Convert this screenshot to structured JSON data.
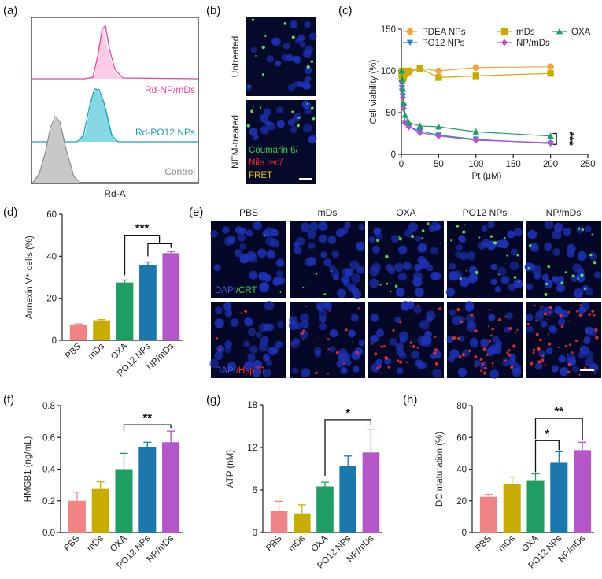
{
  "panels": {
    "a": "(a)",
    "b": "(b)",
    "c": "(c)",
    "d": "(d)",
    "e": "(e)",
    "f": "(f)",
    "g": "(g)",
    "h": "(h)"
  },
  "colors": {
    "pink": "#f08484",
    "olive": "#c8ad00",
    "green": "#1e9e63",
    "blue": "#1a78ae",
    "purple": "#b256c9",
    "pdea": "#f2a33a",
    "mds_line": "#c8ad00",
    "po12": "#2e84c6",
    "np": "#b256c9",
    "oxa_line": "#1e9e63",
    "flow_pink": "#e8409a",
    "flow_teal": "#1da3b8",
    "flow_gray": "#8c8c8c"
  },
  "flow": {
    "xlabel": "Rd-A",
    "labels": [
      "Rd-NP/mDs",
      "Rd-PO12 NPs",
      "Control"
    ]
  },
  "micro_b": {
    "rows": [
      "Untreated",
      "NEM-treated"
    ],
    "legend": [
      "Coumarin 6/",
      "Nile red/",
      "FRET"
    ]
  },
  "micro_e": {
    "columns": [
      "PBS",
      "mDs",
      "OXA",
      "PO12 NPs",
      "NP/mDs"
    ],
    "stain1_a": "DAPI",
    "stain1_b": "/CRT",
    "stain2_a": "DAPI",
    "stain2_b": "/Hsp70"
  },
  "chart_data": [
    {
      "panel": "c",
      "type": "line",
      "ylabel": "Cell viability (%)",
      "xlabel": "Pt (μM)",
      "xlim": [
        0,
        250
      ],
      "ylim": [
        0,
        150
      ],
      "xticks": [
        "0",
        "50",
        "100",
        "150",
        "200",
        "250"
      ],
      "yticks": [
        "0",
        "50",
        "100",
        "150"
      ],
      "significance": "***",
      "series": [
        {
          "name": "PDEA NPs",
          "marker": "circle",
          "x": [
            0.5,
            1,
            2,
            3,
            5,
            10,
            25,
            50,
            100,
            200
          ],
          "y": [
            92,
            96,
            88,
            100,
            95,
            98,
            103,
            100,
            104,
            105
          ]
        },
        {
          "name": "PO12 NPs",
          "marker": "tri-down",
          "x": [
            0.5,
            1,
            2,
            3,
            5,
            10,
            25,
            50,
            100,
            200
          ],
          "y": [
            85,
            80,
            70,
            57,
            38,
            33,
            28,
            23,
            18,
            13
          ]
        },
        {
          "name": "mDs",
          "marker": "square",
          "x": [
            0.5,
            1,
            2,
            3,
            5,
            10,
            25,
            50,
            100,
            200
          ],
          "y": [
            95,
            100,
            96,
            92,
            96,
            100,
            103,
            92,
            94,
            97
          ]
        },
        {
          "name": "NP/mDs",
          "marker": "diamond",
          "x": [
            0.5,
            1,
            2,
            3,
            5,
            10,
            25,
            50,
            100,
            200
          ],
          "y": [
            88,
            78,
            68,
            55,
            38,
            33,
            26,
            22,
            17,
            14
          ]
        },
        {
          "name": "OXA",
          "marker": "tri-up",
          "x": [
            0.5,
            1,
            2,
            3,
            5,
            10,
            25,
            50,
            100,
            200
          ],
          "y": [
            100,
            90,
            78,
            62,
            47,
            38,
            34,
            33,
            27,
            22
          ]
        }
      ]
    },
    {
      "panel": "d",
      "type": "bar",
      "ylabel": "Annexin V⁺ cells (%)",
      "categories": [
        "PBS",
        "mDs",
        "OXA",
        "PO12 NPs",
        "NP/mDs"
      ],
      "values": [
        7.5,
        9.5,
        27.5,
        36,
        41.5
      ],
      "errors": [
        0.3,
        0.4,
        1.2,
        1.3,
        0.8
      ],
      "ylim": [
        0,
        60
      ],
      "yticks": [
        "0",
        "20",
        "40",
        "60"
      ],
      "significance": "***"
    },
    {
      "panel": "f",
      "type": "bar",
      "ylabel": "HMGB1 (ng/mL)",
      "categories": [
        "PBS",
        "mDs",
        "OXA",
        "PO12 NPs",
        "NP/mDs"
      ],
      "values": [
        0.2,
        0.275,
        0.4,
        0.54,
        0.57
      ],
      "errors": [
        0.055,
        0.045,
        0.1,
        0.03,
        0.07
      ],
      "ylim": [
        0,
        0.8
      ],
      "yticks": [
        "0.0",
        "0.2",
        "0.4",
        "0.6",
        "0.8"
      ],
      "significance": "**"
    },
    {
      "panel": "g",
      "type": "bar",
      "ylabel": "ATP (nM)",
      "categories": [
        "PBS",
        "mDs",
        "OXA",
        "PO12 NPs",
        "NP/mDs"
      ],
      "values": [
        3.0,
        2.7,
        6.5,
        9.4,
        11.3
      ],
      "errors": [
        1.4,
        1.2,
        0.6,
        1.4,
        3.3
      ],
      "ylim": [
        0,
        18
      ],
      "yticks": [
        "0",
        "6",
        "12",
        "18"
      ],
      "significance": "*"
    },
    {
      "panel": "h",
      "type": "bar",
      "ylabel": "DC maturation (%)",
      "categories": [
        "PBS",
        "mDs",
        "OXA",
        "PO12 NPs",
        "NP/mDs"
      ],
      "values": [
        22.5,
        30.5,
        33,
        44,
        52
      ],
      "errors": [
        1.5,
        4.5,
        4.0,
        7.0,
        5.0
      ],
      "ylim": [
        0,
        80
      ],
      "yticks": [
        "0",
        "20",
        "40",
        "60",
        "80"
      ],
      "significance": [
        "*",
        "**"
      ]
    }
  ]
}
